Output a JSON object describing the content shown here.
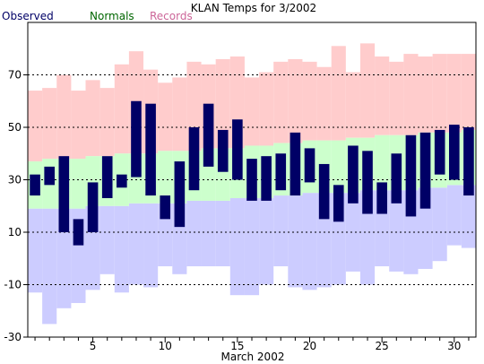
{
  "chart_data": {
    "type": "bar",
    "title": "KLAN Temps for 3/2002",
    "xlabel": "March 2002",
    "ylabel": "",
    "xlim": [
      0.5,
      31.5
    ],
    "ylim": [
      -30,
      90
    ],
    "x_ticks": [
      5,
      10,
      15,
      20,
      25,
      30
    ],
    "y_ticks": [
      -30,
      -10,
      10,
      30,
      50,
      70
    ],
    "gridlines_y": [
      -10,
      10,
      30,
      50,
      70
    ],
    "legend": [
      {
        "name": "Observed",
        "color": "#000066"
      },
      {
        "name": "Normals",
        "color": "#006600"
      },
      {
        "name": "Records",
        "color": "#cc6699"
      }
    ],
    "colors": {
      "observed": "#000066",
      "normals": "#ccffcc",
      "records_high": "#ffcccc",
      "records_low": "#ccccff",
      "grid": "#000000"
    },
    "days": [
      1,
      2,
      3,
      4,
      5,
      6,
      7,
      8,
      9,
      10,
      11,
      12,
      13,
      14,
      15,
      16,
      17,
      18,
      19,
      20,
      21,
      22,
      23,
      24,
      25,
      26,
      27,
      28,
      29,
      30,
      31
    ],
    "record_high": [
      64,
      65,
      70,
      64,
      68,
      65,
      74,
      79,
      72,
      67,
      69,
      75,
      74,
      76,
      77,
      69,
      71,
      75,
      76,
      75,
      73,
      81,
      71,
      82,
      77,
      75,
      78,
      77,
      78,
      78,
      78
    ],
    "record_low": [
      -13,
      -25,
      -19,
      -17,
      -12,
      -6,
      -13,
      -10,
      -11,
      -3,
      -6,
      -3,
      -3,
      -3,
      -14,
      -14,
      -10,
      -3,
      -11,
      -12,
      -11,
      -10,
      -5,
      -10,
      -3,
      -5,
      -6,
      -4,
      -1,
      5,
      4
    ],
    "normal_high": [
      37,
      38,
      38,
      38,
      39,
      39,
      40,
      40,
      40,
      41,
      41,
      41,
      42,
      42,
      42,
      43,
      43,
      44,
      44,
      45,
      45,
      45,
      46,
      46,
      47,
      47,
      47,
      48,
      48,
      48,
      49
    ],
    "normal_low": [
      19,
      19,
      19,
      19,
      20,
      20,
      20,
      21,
      21,
      21,
      21,
      22,
      22,
      22,
      23,
      23,
      23,
      24,
      24,
      25,
      25,
      25,
      25,
      26,
      26,
      26,
      26,
      27,
      27,
      28,
      28
    ],
    "observed_high": [
      32,
      35,
      39,
      15,
      29,
      39,
      32,
      60,
      59,
      24,
      37,
      50,
      59,
      49,
      53,
      38,
      39,
      40,
      48,
      42,
      36,
      28,
      43,
      41,
      29,
      40,
      47,
      48,
      49,
      51,
      50
    ],
    "observed_low": [
      24,
      28,
      10,
      5,
      10,
      23,
      27,
      31,
      24,
      15,
      12,
      26,
      35,
      33,
      30,
      22,
      22,
      26,
      24,
      29,
      15,
      14,
      21,
      17,
      17,
      21,
      16,
      19,
      32,
      30,
      24
    ]
  }
}
